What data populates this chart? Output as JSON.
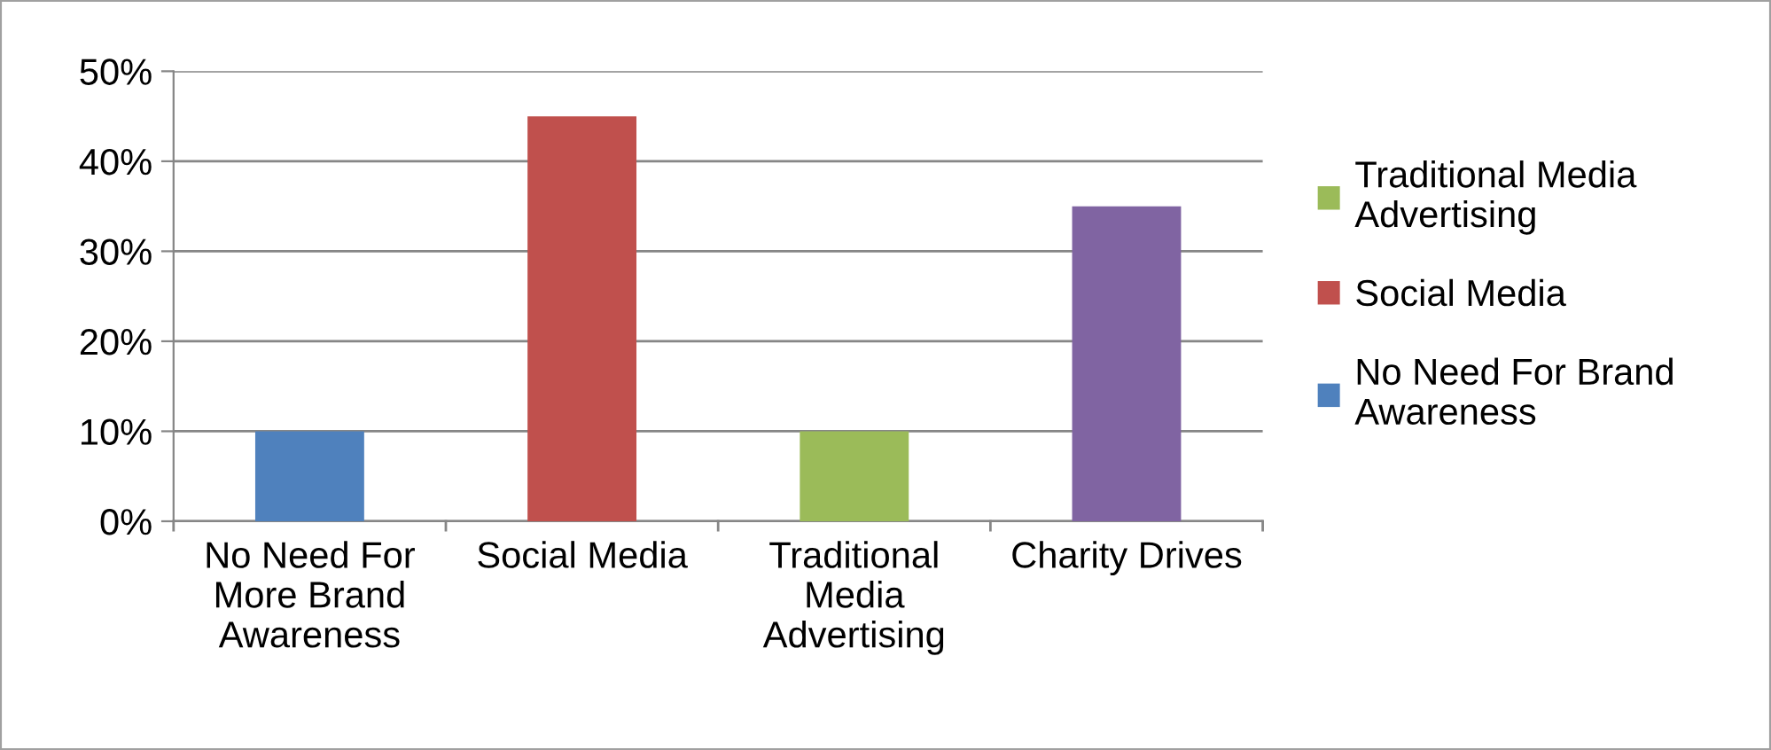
{
  "chart_data": {
    "type": "bar",
    "categories": [
      "No Need For More Brand Awareness",
      "Social Media",
      "Traditional Media Advertising",
      "Charity Drives"
    ],
    "series": [
      {
        "name": "No Need For Brand Awareness",
        "color": "#4f81bd",
        "values": [
          10,
          null,
          null,
          null
        ]
      },
      {
        "name": "Social Media",
        "color": "#c0504d",
        "values": [
          null,
          45,
          null,
          null
        ]
      },
      {
        "name": "Traditional Media Advertising",
        "color": "#9bbb59",
        "values": [
          null,
          null,
          10,
          null
        ]
      },
      {
        "color": "#8064a2",
        "values": [
          null,
          null,
          null,
          35
        ]
      }
    ],
    "ylim": [
      0,
      50
    ],
    "yticks": [
      {
        "value": 0,
        "label": "0%"
      },
      {
        "value": 10,
        "label": "10%"
      },
      {
        "value": 20,
        "label": "20%"
      },
      {
        "value": 30,
        "label": "30%"
      },
      {
        "value": 40,
        "label": "40%"
      },
      {
        "value": 50,
        "label": "50%"
      }
    ],
    "grid": "y",
    "legend": "right"
  }
}
